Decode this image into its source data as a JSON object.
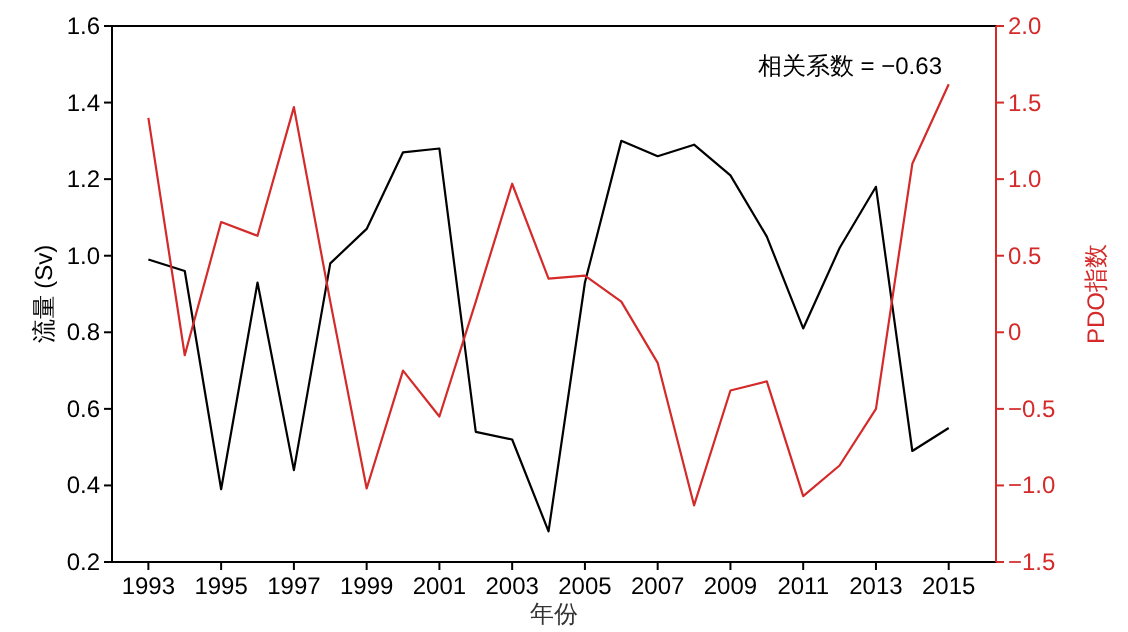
{
  "chart_data": {
    "type": "line",
    "xlabel": "年份",
    "ylabel": "流量 (Sv)",
    "y2label": "PDO指数",
    "annotations": [
      "相关系数 = −0.63"
    ],
    "x": [
      1993,
      1994,
      1995,
      1996,
      1997,
      1998,
      1999,
      2000,
      2001,
      2002,
      2003,
      2004,
      2005,
      2006,
      2007,
      2008,
      2009,
      2010,
      2011,
      2012,
      2013,
      2014,
      2015
    ],
    "series": [
      {
        "color": "#000000",
        "values": [
          0.99,
          0.96,
          0.39,
          0.93,
          0.44,
          0.98,
          1.07,
          1.27,
          1.28,
          0.54,
          0.52,
          0.28,
          0.93,
          1.3,
          1.26,
          1.29,
          1.21,
          1.05,
          0.81,
          1.02,
          1.18,
          0.49,
          0.55
        ]
      },
      {
        "color": "#d42a2a",
        "axis": "y2",
        "values": [
          1.4,
          -0.15,
          0.72,
          0.63,
          1.47,
          0.2,
          -1.02,
          -0.25,
          -0.55,
          0.2,
          0.97,
          0.35,
          0.37,
          0.2,
          -0.2,
          -1.13,
          -0.38,
          -0.32,
          -1.07,
          -0.87,
          -0.5,
          1.1,
          1.62
        ]
      }
    ],
    "xlim": [
      1992,
      2016.3
    ],
    "xticks": [
      1993,
      1995,
      1997,
      1999,
      2001,
      2003,
      2005,
      2007,
      2009,
      2011,
      2013,
      2015
    ],
    "ylim": [
      0.2,
      1.6
    ],
    "yticks": [
      {
        "value": 0.2,
        "label": "0.2"
      },
      {
        "value": 0.4,
        "label": "0.4"
      },
      {
        "value": 0.6,
        "label": "0.6"
      },
      {
        "value": 0.8,
        "label": "0.8"
      },
      {
        "value": 1,
        "label": "1.0"
      },
      {
        "value": 1.2,
        "label": "1.2"
      },
      {
        "value": 1.4,
        "label": "1.4"
      },
      {
        "value": 1.6,
        "label": "1.6"
      }
    ],
    "y2lim": [
      -1.5,
      2.0
    ],
    "y2ticks": [
      {
        "value": -1.5,
        "label": "−1.5"
      },
      {
        "value": -1,
        "label": "−1.0"
      },
      {
        "value": -0.5,
        "label": "−0.5"
      },
      0,
      {
        "value": 0.5,
        "label": "0.5"
      },
      {
        "value": 1,
        "label": "1.0"
      },
      {
        "value": 1.5,
        "label": "1.5"
      },
      {
        "value": 2,
        "label": "2.0"
      }
    ],
    "grid": false
  }
}
